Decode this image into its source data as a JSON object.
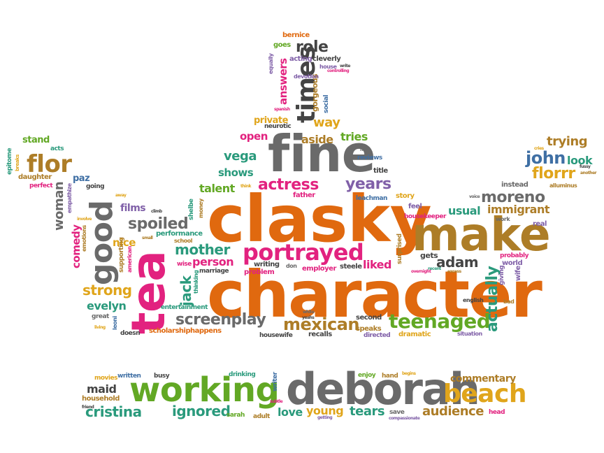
{
  "words": {
    "clasky": "clasky",
    "character": "character",
    "fine": "fine",
    "make": "make",
    "tea": "tea",
    "good": "good",
    "deborah": "deborah",
    "working": "working",
    "beach": "beach",
    "portrayed": "portrayed",
    "times": "times",
    "mexican": "mexican",
    "teenaged": "teenaged",
    "screenplay": "screenplay",
    "actress": "actress",
    "years": "years",
    "flor": "flor",
    "florrr": "florrr",
    "john": "john",
    "look": "look",
    "moreno": "moreno",
    "immigrant": "immigrant",
    "mother": "mother",
    "spoiled": "spoiled",
    "person": "person",
    "jack": "jack",
    "adam": "adam",
    "actually": "actually",
    "liked": "liked",
    "strong": "strong",
    "evelyn": "evelyn",
    "talent": "talent",
    "vega": "vega",
    "role": "role",
    "answers": "answers",
    "way": "way",
    "aside": "aside",
    "open": "open",
    "tries": "tries",
    "shows": "shows",
    "usual": "usual",
    "trying": "trying",
    "woman": "woman",
    "comedy": "comedy",
    "nice": "nice",
    "cristina": "cristina",
    "ignored": "ignored",
    "tears": "tears",
    "audience": "audience",
    "commentary": "commentary",
    "love": "love",
    "young": "young",
    "maid": "maid",
    "stand": "stand",
    "paz": "paz",
    "films": "films",
    "private": "private",
    "gorgeous": "gorgeous",
    "acting": "acting",
    "cleverly": "cleverly",
    "bernice": "bernice",
    "goes": "goes",
    "equally": "equally",
    "house": "house",
    "devotion": "devotion",
    "social": "social",
    "spanish": "spanish",
    "neurotic": "neurotic",
    "reviews": "reviews",
    "title": "title",
    "story": "story",
    "feel": "feel",
    "leachman": "leachman",
    "housekeeper": "housekeeper",
    "surprised": "surprised",
    "gets": "gets",
    "instead": "instead",
    "alluminus": "alluminus",
    "world": "world",
    "real": "real",
    "work": "work",
    "probably": "probably",
    "giving": "giving",
    "wife": "wife",
    "english": "english",
    "bad": "bad",
    "dramatic": "dramatic",
    "situation": "situation",
    "directed": "directed",
    "speaks": "speaks",
    "second": "second",
    "recalls": "recalls",
    "housewife": "housewife",
    "scholarship": "scholarship",
    "happens": "happens",
    "doesn": "doesn",
    "leoni": "leoni",
    "great": "great",
    "living": "living",
    "entertainment": "entertainment",
    "supporting": "supporting",
    "american": "american",
    "performance": "performance",
    "school": "school",
    "thinking": "thinking",
    "wise": "wise",
    "marriage": "marriage",
    "writing": "writing",
    "problem": "problem",
    "don": "don",
    "employer": "employer",
    "steele": "steele",
    "father": "father",
    "money": "money",
    "shelbe": "shelbe",
    "going": "going",
    "away": "away",
    "daughter": "daughter",
    "perfect": "perfect",
    "acts": "acts",
    "epitome": "epitome",
    "breaks": "breaks",
    "empathize": "empathize",
    "emotions": "emotions",
    "movies": "movies",
    "written": "written",
    "busy": "busy",
    "drinking": "drinking",
    "household": "household",
    "enjoy": "enjoy",
    "hand": "hand",
    "begins": "begins",
    "sarah": "sarah",
    "adult": "adult",
    "writer": "writer",
    "save": "save",
    "compassionate": "compassionate",
    "head": "head",
    "white": "white",
    "fussy": "fussy",
    "another": "another",
    "think": "think",
    "controlling": "controlling",
    "write": "write",
    "overnight": "overnight",
    "voice": "voice",
    "small": "small",
    "climb": "climb",
    "cries": "cries",
    "news": "news",
    "involve": "involve",
    "subtle": "subtle",
    "friend": "friend",
    "getting": "getting",
    "yeahs": "yeahs",
    "recent": "recent",
    "excess": "excess"
  }
}
